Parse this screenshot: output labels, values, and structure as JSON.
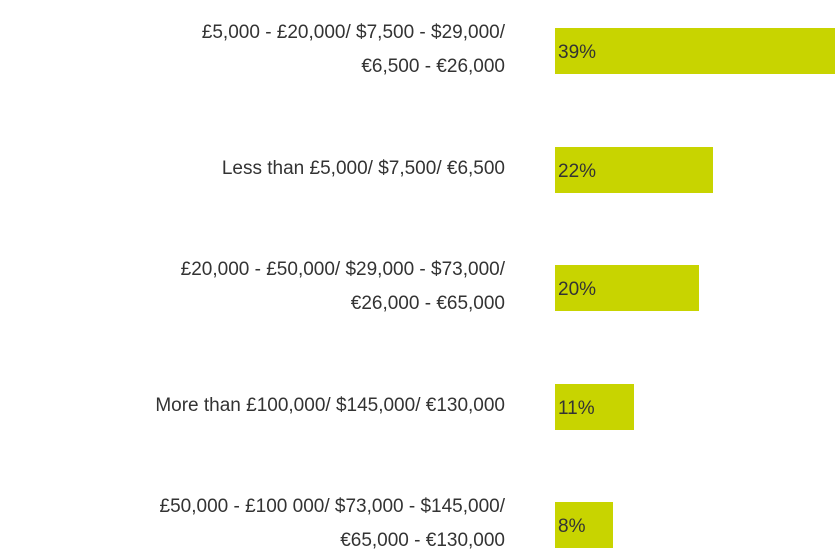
{
  "chart_data": {
    "type": "bar",
    "orientation": "horizontal",
    "categories": [
      "£5,000 - £20,000/ $7,500 - $29,000/\n€6,500 - €26,000",
      "Less than £5,000/ $7,500/ €6,500",
      "£20,000 - £50,000/ $29,000 - $73,000/\n€26,000 - €65,000",
      "More than £100,000/ $145,000/ €130,000",
      "£50,000 - £100 000/ $73,000 - $145,000/\n€65,000 - €130,000"
    ],
    "values": [
      39,
      22,
      20,
      11,
      8
    ],
    "value_labels": [
      "39%",
      "22%",
      "20%",
      "11%",
      "8%"
    ],
    "color": "#c8d400"
  }
}
